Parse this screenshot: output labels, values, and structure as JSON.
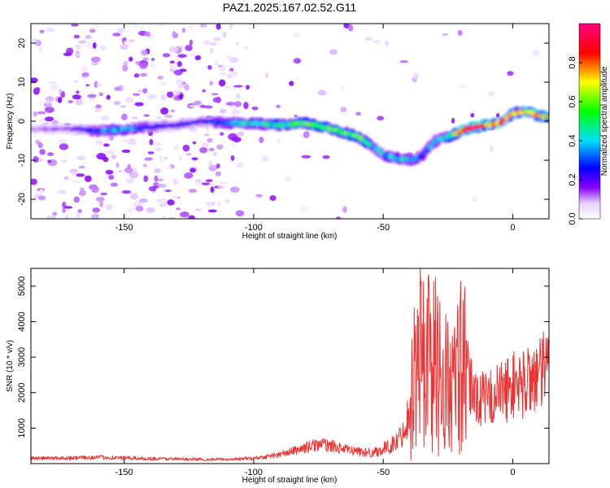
{
  "title": "PAZ1.2025.167.02.52.G11",
  "colors": {
    "snr_line": "#ee3333",
    "axis": "#000000",
    "background": "#ffffff"
  },
  "chart_data": [
    {
      "type": "heatmap",
      "title": "PAZ1.2025.167.02.52.G11",
      "xlabel": "Height of straight line (km)",
      "ylabel": "Frequency (Hz)",
      "xlim": [
        -186,
        14
      ],
      "ylim": [
        -25,
        25
      ],
      "x_ticks": [
        -150,
        -100,
        -50,
        0
      ],
      "y_ticks": [
        -20,
        -10,
        0,
        10,
        20
      ],
      "colorbar": {
        "label": "Normalized spectral amplitude",
        "range": [
          0,
          1
        ],
        "ticks": [
          0.0,
          0.2,
          0.4,
          0.6,
          0.8
        ],
        "colormap": [
          "#ffffff",
          "#8800ff",
          "#0000ff",
          "#00e0ff",
          "#00ff00",
          "#ffff00",
          "#ff0000",
          "#ff0080"
        ]
      },
      "ridge": {
        "x": [
          -186,
          -170,
          -160,
          -150,
          -140,
          -130,
          -120,
          -110,
          -100,
          -90,
          -80,
          -70,
          -60,
          -55,
          -50,
          -45,
          -40,
          -35,
          -30,
          -25,
          -20,
          -15,
          -10,
          -5,
          0,
          5,
          10,
          14
        ],
        "frequency": [
          -2,
          -2,
          -2.5,
          -2,
          -1.5,
          -1,
          0,
          -0.5,
          -0.5,
          -1,
          -0.5,
          -2,
          -4,
          -6,
          -8.5,
          -9.5,
          -10,
          -9,
          -5,
          -4,
          -2.5,
          -1.5,
          -1,
          -0.5,
          2,
          2.5,
          1.5,
          1
        ],
        "amplitude": [
          0.1,
          0.15,
          0.3,
          0.4,
          0.25,
          0.2,
          0.2,
          0.35,
          0.45,
          0.45,
          0.55,
          0.55,
          0.55,
          0.45,
          0.35,
          0.4,
          0.4,
          0.3,
          0.35,
          0.4,
          0.8,
          0.9,
          0.8,
          0.85,
          0.7,
          0.75,
          0.8,
          0.7
        ]
      }
    },
    {
      "type": "line",
      "xlabel": "Height of straight line (km)",
      "ylabel": "SNR (10 * v/v)",
      "xlim": [
        -186,
        14
      ],
      "ylim": [
        0,
        5500
      ],
      "x_ticks": [
        -150,
        -100,
        -50,
        0
      ],
      "y_ticks": [
        1000,
        2000,
        3000,
        4000,
        5000
      ],
      "series": [
        {
          "x": [
            -186,
            -180,
            -170,
            -160,
            -150,
            -140,
            -130,
            -120,
            -110,
            -100,
            -95,
            -90,
            -85,
            -80,
            -75,
            -70,
            -65,
            -60,
            -55,
            -50,
            -45,
            -42,
            -40,
            -38,
            -36,
            -34,
            -32,
            -30,
            -28,
            -26,
            -24,
            -22,
            -20,
            -18,
            -15,
            -12,
            -10,
            -8,
            -5,
            -2,
            0,
            2,
            4,
            6,
            8,
            10,
            12,
            14
          ],
          "values": [
            150,
            150,
            160,
            180,
            160,
            140,
            130,
            120,
            120,
            150,
            200,
            250,
            350,
            450,
            550,
            500,
            400,
            350,
            300,
            400,
            600,
            900,
            1500,
            2500,
            3000,
            3200,
            3000,
            2800,
            2600,
            2300,
            2100,
            2200,
            2800,
            2500,
            2000,
            1800,
            1800,
            1900,
            2000,
            2100,
            2200,
            2300,
            2200,
            2400,
            2500,
            2400,
            2600,
            2700
          ]
        }
      ]
    }
  ]
}
